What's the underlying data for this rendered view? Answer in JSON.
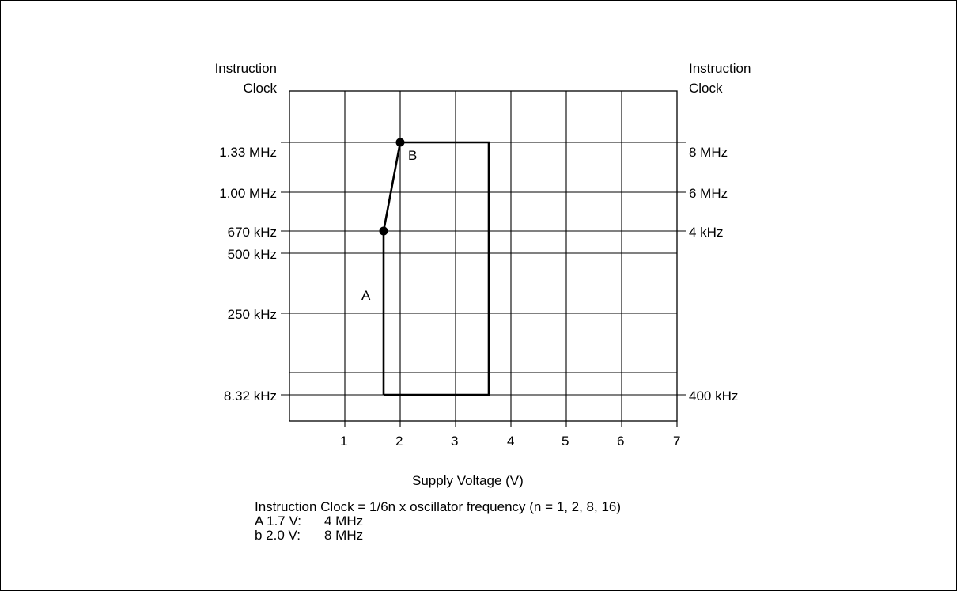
{
  "chart_data": {
    "type": "line",
    "x_axis": {
      "label": "Supply Voltage (V)",
      "ticks": [
        1,
        2,
        3,
        4,
        5,
        6,
        7
      ],
      "range": [
        0,
        7
      ]
    },
    "y_axis_left": {
      "title_line1": "Instruction",
      "title_line2": "Clock",
      "ticks": [
        "8.32 kHz",
        "250 kHz",
        "500 kHz",
        "670 kHz",
        "1.00 MHz",
        "1.33 MHz"
      ]
    },
    "y_axis_right": {
      "title_line1": "Instruction",
      "title_line2": "Clock",
      "ticks": [
        "400 kHz",
        "4 kHz",
        "6 MHz",
        "8 MHz"
      ]
    },
    "region_outline": [
      {
        "x": 1.7,
        "y": "8.32 kHz"
      },
      {
        "x": 1.7,
        "y": "670 kHz"
      },
      {
        "x": 2.0,
        "y": "1.33 MHz"
      },
      {
        "x": 3.6,
        "y": "1.33 MHz"
      },
      {
        "x": 3.6,
        "y": "8.32 kHz"
      }
    ],
    "points": [
      {
        "label": "A",
        "x": 1.7,
        "y": "670 kHz"
      },
      {
        "label": "B",
        "x": 2.0,
        "y": "1.33 MHz"
      }
    ],
    "grid": true
  },
  "notes": {
    "formula": "Instruction Clock = 1/6n x oscillator frequency (n = 1, 2, 8, 16)",
    "rows": [
      {
        "key": "A 1.7 V:",
        "value": "4 MHz"
      },
      {
        "key": "b 2.0 V:",
        "value": "8 MHz"
      }
    ]
  }
}
